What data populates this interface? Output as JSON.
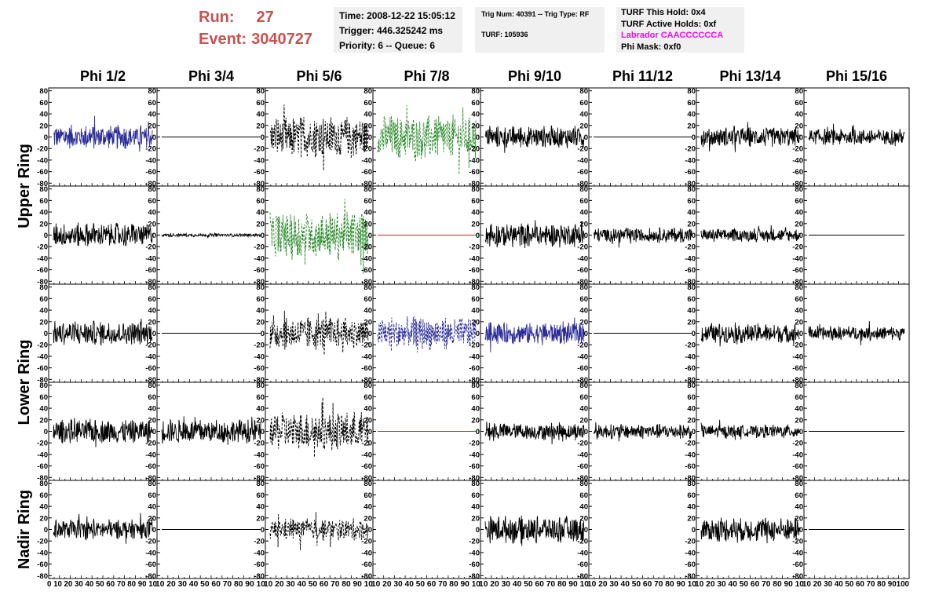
{
  "header": {
    "run_label": "Run:",
    "run_value": "27",
    "event_label": "Event:",
    "event_value": "3040727",
    "time": "Time: 2008-12-22 15:05:12",
    "trigger": "Trigger: 446.325242 ms",
    "priority": "Priority: 6 -- Queue: 6",
    "trig_num": "Trig Num: 40391 -- Trig Type: RF",
    "turf": "TURF: 105936",
    "turf_this_hold": "TURF This Hold: 0x4",
    "turf_active_holds": "TURF Active Holds: 0xf",
    "labrador": "Labrador CAACCCCCCA",
    "phi_mask": "Phi Mask: 0xf0"
  },
  "colors": {
    "run_text": "#c9514f",
    "labrador_text": "#ff00ff",
    "blue_trace": "#2b2b99",
    "green_trace": "#2e8b2e",
    "red_trace": "#cc2222",
    "black_trace": "#000000"
  },
  "chart_data": {
    "type": "line",
    "columns": [
      "Phi 1/2",
      "Phi 3/4",
      "Phi 5/6",
      "Phi 7/8",
      "Phi 9/10",
      "Phi 11/12",
      "Phi 13/14",
      "Phi 15/16"
    ],
    "ring_labels": [
      "Upper Ring",
      "Lower Ring",
      "Nadir Ring"
    ],
    "rows": 5,
    "ring_row_spans": [
      [
        0,
        1
      ],
      [
        2,
        3
      ],
      [
        4,
        4
      ]
    ],
    "xlim": [
      0,
      100
    ],
    "ylim": [
      -85,
      85
    ],
    "y_ticks": [
      80,
      60,
      40,
      20,
      0,
      -20,
      -40,
      -60,
      -80
    ],
    "x_ticks": [
      0,
      10,
      20,
      30,
      40,
      50,
      60,
      70,
      80,
      90,
      100
    ],
    "x_tick_strings": [
      "0 10 20 30 40 50 60 70 80 90 10",
      "10 20 30 40 50 60 70 80 90 10",
      "10 20 30 40 50 60 70 80 90 10",
      "10 20 30 40 50 60 70 80 90 10",
      "10 20 30 40 50 60 70 80 90 10",
      "10 20 30 40 50 60 70 80 90 10",
      "10 20 30 40 50 60 70 80 90 10",
      "10 20 30 40 50 60 70 80 90100"
    ],
    "panels": [
      {
        "row": 0,
        "col": 0,
        "style": "blue",
        "amplitude": 22,
        "dashed": false,
        "present": true
      },
      {
        "row": 0,
        "col": 1,
        "style": "flat",
        "amplitude": 0,
        "dashed": false,
        "present": true
      },
      {
        "row": 0,
        "col": 2,
        "style": "black",
        "amplitude": 38,
        "dashed": true,
        "present": true
      },
      {
        "row": 0,
        "col": 3,
        "style": "green",
        "amplitude": 40,
        "dashed": true,
        "present": true
      },
      {
        "row": 0,
        "col": 4,
        "style": "black",
        "amplitude": 20,
        "dashed": false,
        "present": true
      },
      {
        "row": 0,
        "col": 5,
        "style": "flat",
        "amplitude": 0,
        "dashed": false,
        "present": true
      },
      {
        "row": 0,
        "col": 6,
        "style": "black",
        "amplitude": 18,
        "dashed": false,
        "present": true
      },
      {
        "row": 0,
        "col": 7,
        "style": "black",
        "amplitude": 15,
        "dashed": false,
        "present": true
      },
      {
        "row": 1,
        "col": 0,
        "style": "black",
        "amplitude": 22,
        "dashed": false,
        "present": true
      },
      {
        "row": 1,
        "col": 1,
        "style": "black",
        "amplitude": 3,
        "dashed": false,
        "present": true
      },
      {
        "row": 1,
        "col": 2,
        "style": "green",
        "amplitude": 45,
        "dashed": true,
        "present": true
      },
      {
        "row": 1,
        "col": 3,
        "style": "red",
        "amplitude": 0,
        "dashed": false,
        "present": true
      },
      {
        "row": 1,
        "col": 4,
        "style": "black",
        "amplitude": 22,
        "dashed": false,
        "present": true
      },
      {
        "row": 1,
        "col": 5,
        "style": "black",
        "amplitude": 14,
        "dashed": false,
        "present": true
      },
      {
        "row": 1,
        "col": 6,
        "style": "black",
        "amplitude": 12,
        "dashed": false,
        "present": true
      },
      {
        "row": 1,
        "col": 7,
        "style": "flat",
        "amplitude": 0,
        "dashed": false,
        "present": true
      },
      {
        "row": 2,
        "col": 0,
        "style": "black",
        "amplitude": 22,
        "dashed": false,
        "present": true
      },
      {
        "row": 2,
        "col": 1,
        "style": "flat",
        "amplitude": 0,
        "dashed": false,
        "present": true
      },
      {
        "row": 2,
        "col": 2,
        "style": "black",
        "amplitude": 30,
        "dashed": true,
        "present": true
      },
      {
        "row": 2,
        "col": 3,
        "style": "blue",
        "amplitude": 30,
        "dashed": true,
        "present": true
      },
      {
        "row": 2,
        "col": 4,
        "style": "blue",
        "amplitude": 20,
        "dashed": false,
        "present": true
      },
      {
        "row": 2,
        "col": 5,
        "style": "flat",
        "amplitude": 0,
        "dashed": false,
        "present": true
      },
      {
        "row": 2,
        "col": 6,
        "style": "black",
        "amplitude": 18,
        "dashed": false,
        "present": true
      },
      {
        "row": 2,
        "col": 7,
        "style": "black",
        "amplitude": 13,
        "dashed": false,
        "present": true
      },
      {
        "row": 3,
        "col": 0,
        "style": "black",
        "amplitude": 22,
        "dashed": false,
        "present": true
      },
      {
        "row": 3,
        "col": 1,
        "style": "black",
        "amplitude": 22,
        "dashed": false,
        "present": true
      },
      {
        "row": 3,
        "col": 2,
        "style": "black",
        "amplitude": 35,
        "dashed": true,
        "present": true
      },
      {
        "row": 3,
        "col": 3,
        "style": "red",
        "amplitude": 0,
        "dashed": false,
        "present": true
      },
      {
        "row": 3,
        "col": 4,
        "style": "black",
        "amplitude": 16,
        "dashed": false,
        "present": true
      },
      {
        "row": 3,
        "col": 5,
        "style": "black",
        "amplitude": 14,
        "dashed": false,
        "present": true
      },
      {
        "row": 3,
        "col": 6,
        "style": "black",
        "amplitude": 12,
        "dashed": false,
        "present": true
      },
      {
        "row": 3,
        "col": 7,
        "style": "flat",
        "amplitude": 0,
        "dashed": false,
        "present": true
      },
      {
        "row": 4,
        "col": 0,
        "style": "black",
        "amplitude": 18,
        "dashed": false,
        "present": true
      },
      {
        "row": 4,
        "col": 1,
        "style": "flat",
        "amplitude": 0,
        "dashed": false,
        "present": true
      },
      {
        "row": 4,
        "col": 2,
        "style": "black",
        "amplitude": 20,
        "dashed": true,
        "present": true
      },
      {
        "row": 4,
        "col": 3,
        "style": "none",
        "amplitude": 0,
        "dashed": false,
        "present": false
      },
      {
        "row": 4,
        "col": 4,
        "style": "black",
        "amplitude": 25,
        "dashed": false,
        "present": true
      },
      {
        "row": 4,
        "col": 5,
        "style": "none",
        "amplitude": 0,
        "dashed": false,
        "present": false
      },
      {
        "row": 4,
        "col": 6,
        "style": "black",
        "amplitude": 22,
        "dashed": false,
        "present": true
      },
      {
        "row": 4,
        "col": 7,
        "style": "flat",
        "amplitude": 0,
        "dashed": false,
        "present": true
      }
    ]
  }
}
